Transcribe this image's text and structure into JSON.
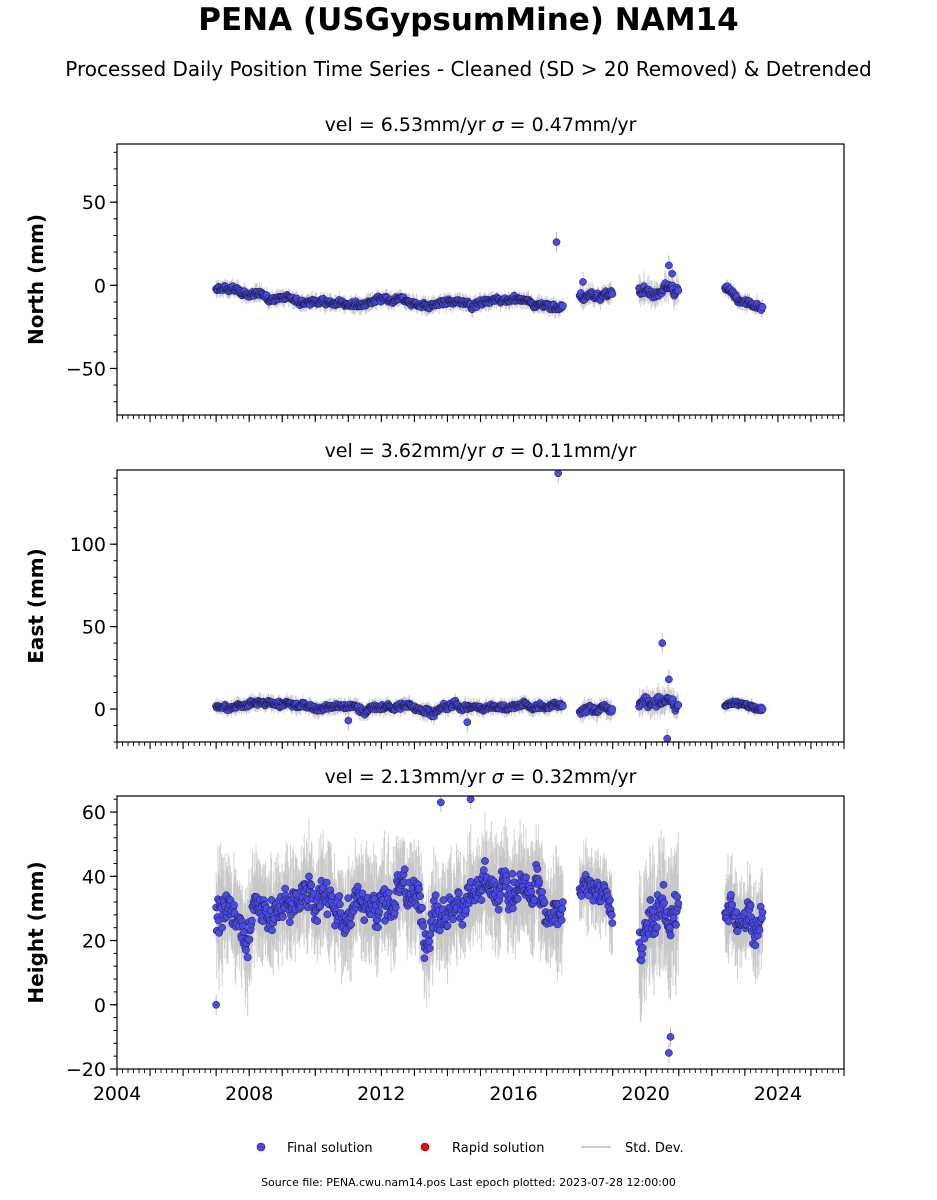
{
  "title": "PENA (USGypsumMine) NAM14",
  "subtitle": "Processed Daily Position Time Series - Cleaned (SD > 20 Removed) & Detrended",
  "legend": {
    "final": "Final solution",
    "rapid": "Rapid solution",
    "std": "Std. Dev."
  },
  "footer": "Source file: PENA.cwu.nam14.pos  Last epoch plotted: 2023-07-28 12:00:00",
  "colors": {
    "final": "#4a4ae6",
    "rapid": "#dd1111",
    "std": "#bdbdbd",
    "marker_edge": "#1a1a40"
  },
  "chart_data": [
    {
      "type": "scatter",
      "panel": "north",
      "title_vel": "vel = 6.53mm/yr",
      "title_sigma": "= 0.47mm/yr",
      "ylabel": "North (mm)",
      "xlim": [
        2004.0,
        2026.0
      ],
      "ylim": [
        -78,
        85
      ],
      "yticks": [
        -50,
        0,
        50
      ],
      "ytick_labels": [
        "−50",
        "0",
        "50"
      ],
      "show_xtick_labels": false,
      "segments": [
        {
          "x": [
            2007.0,
            2010.0,
            2013.0,
            2016.0,
            2017.5
          ],
          "y": [
            -3,
            -9,
            -11,
            -9,
            -13
          ],
          "spread": 2.5
        },
        {
          "x": [
            2018.0,
            2019.0
          ],
          "y": [
            -7,
            -3
          ],
          "spread": 3
        },
        {
          "x": [
            2019.8,
            2021.0
          ],
          "y": [
            -4,
            -4
          ],
          "spread": 4
        },
        {
          "x": [
            2022.4,
            2023.55
          ],
          "y": [
            -2,
            -13
          ],
          "spread": 2.5
        }
      ],
      "outliers": [
        {
          "x": 2017.3,
          "y": 26
        },
        {
          "x": 2018.1,
          "y": 2
        },
        {
          "x": 2020.7,
          "y": 12
        },
        {
          "x": 2020.8,
          "y": 7
        }
      ]
    },
    {
      "type": "scatter",
      "panel": "east",
      "title_vel": "vel = 3.62mm/yr",
      "title_sigma": "= 0.11mm/yr",
      "ylabel": "East (mm)",
      "xlim": [
        2004.0,
        2026.0
      ],
      "ylim": [
        -20,
        145
      ],
      "yticks": [
        0,
        50,
        100
      ],
      "ytick_labels": [
        "0",
        "50",
        "100"
      ],
      "show_xtick_labels": false,
      "segments": [
        {
          "x": [
            2007.0,
            2008.0,
            2012.0,
            2017.5
          ],
          "y": [
            1,
            3,
            1,
            2
          ],
          "spread": 2.5
        },
        {
          "x": [
            2018.0,
            2019.0
          ],
          "y": [
            -2,
            0
          ],
          "spread": 3
        },
        {
          "x": [
            2019.8,
            2021.0
          ],
          "y": [
            2,
            3
          ],
          "spread": 4
        },
        {
          "x": [
            2022.4,
            2023.55
          ],
          "y": [
            2,
            0
          ],
          "spread": 2
        }
      ],
      "outliers": [
        {
          "x": 2017.35,
          "y": 143
        },
        {
          "x": 2020.5,
          "y": 40
        },
        {
          "x": 2020.7,
          "y": 18
        },
        {
          "x": 2020.65,
          "y": -18
        },
        {
          "x": 2011.0,
          "y": -7
        },
        {
          "x": 2014.6,
          "y": -8
        }
      ]
    },
    {
      "type": "scatter",
      "panel": "height",
      "title_vel": "vel = 2.13mm/yr",
      "title_sigma": "= 0.32mm/yr",
      "ylabel": "Height (mm)",
      "xlim": [
        2004.0,
        2026.0
      ],
      "ylim": [
        -20,
        65
      ],
      "yticks": [
        -20,
        0,
        20,
        40,
        60
      ],
      "ytick_labels": [
        "−20",
        "0",
        "20",
        "40",
        "60"
      ],
      "show_xtick_labels": true,
      "xticks": [
        2004,
        2008,
        2012,
        2016,
        2020,
        2024
      ],
      "xtick_labels": [
        "2004",
        "2008",
        "2012",
        "2016",
        "2020",
        "2024"
      ],
      "segments": [
        {
          "x": [
            2007.0,
            2012.0,
            2017.5
          ],
          "y": [
            28,
            32,
            32
          ],
          "spread": 8
        },
        {
          "x": [
            2018.0,
            2019.0
          ],
          "y": [
            35,
            30
          ],
          "spread": 6
        },
        {
          "x": [
            2019.8,
            2021.0
          ],
          "y": [
            25,
            28
          ],
          "spread": 10
        },
        {
          "x": [
            2022.4,
            2023.55
          ],
          "y": [
            28,
            32
          ],
          "spread": 7
        }
      ],
      "outliers": [
        {
          "x": 2007.0,
          "y": 0
        },
        {
          "x": 2013.8,
          "y": 63
        },
        {
          "x": 2014.7,
          "y": 64
        },
        {
          "x": 2020.7,
          "y": -15
        },
        {
          "x": 2020.75,
          "y": -10
        }
      ]
    }
  ]
}
